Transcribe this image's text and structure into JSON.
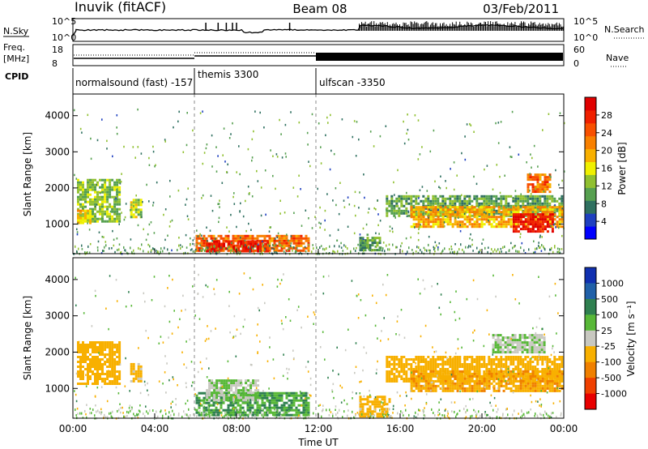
{
  "header": {
    "station": "Inuvik (fitACF)",
    "beam": "Beam 08",
    "date": "03/Feb/2011"
  },
  "top_panels": {
    "nsky_label": "N.Sky",
    "nsky_ticks": [
      "10^5",
      "10^0"
    ],
    "nsearch_label": "N.Search",
    "nsearch_ticks": [
      "10^5",
      "10^0"
    ],
    "freq_label_line1": "Freq.",
    "freq_label_line2": "[MHz]",
    "freq_ticks": [
      "18",
      "8"
    ],
    "nave_label": "Nave",
    "nave_ticks": [
      "60",
      "0"
    ],
    "cpid_label": "CPID",
    "programs": [
      {
        "name": "normalsound (fast) -157",
        "start_hour": 0
      },
      {
        "name": "themis 3300",
        "start_hour": 6
      },
      {
        "name": "ulfscan -3350",
        "start_hour": 12
      }
    ]
  },
  "power_scale": {
    "title": "Power [dB]",
    "ticks": [
      "28",
      "24",
      "20",
      "16",
      "12",
      "8",
      "4"
    ],
    "colors": [
      "#0000ff",
      "#1f40c0",
      "#2f7060",
      "#56a050",
      "#90c030",
      "#f0f000",
      "#f8b000",
      "#f88000",
      "#f85000",
      "#f02000",
      "#e00000"
    ]
  },
  "velocity_scale": {
    "title": "Velocity  [m s⁻¹]",
    "ticks": [
      "1000",
      "500",
      "100",
      "25",
      "-25",
      "-100",
      "-500",
      "-1000"
    ],
    "colors": [
      "#1030b0",
      "#2060a8",
      "#2f8050",
      "#58b838",
      "#c8c8c0",
      "#f8b000",
      "#f08000",
      "#f04000",
      "#e80000"
    ]
  },
  "axes": {
    "ylabel": "Slant Range [km]",
    "xlabel": "Time UT",
    "y_ticks": [
      "1000",
      "2000",
      "3000",
      "4000"
    ],
    "x_ticks": [
      "00:00",
      "04:00",
      "08:00",
      "12:00",
      "16:00",
      "20:00",
      "00:00"
    ]
  },
  "chart_data": [
    {
      "type": "heatmap",
      "title": "Power [dB]",
      "xlabel": "",
      "ylabel": "Slant Range [km]",
      "xlim": [
        0,
        24
      ],
      "ylim": [
        180,
        4600
      ],
      "y_ticks": [
        1000,
        2000,
        3000,
        4000
      ],
      "x_ticks": [
        0,
        4,
        8,
        12,
        16,
        20,
        24
      ],
      "colorbar_range": [
        0,
        32
      ],
      "program_boundaries_hours": [
        6,
        12
      ],
      "regions": [
        {
          "x": [
            0.2,
            2.3
          ],
          "y": [
            1100,
            2250
          ],
          "value": 12
        },
        {
          "x": [
            0.2,
            0.8
          ],
          "y": [
            1050,
            1400
          ],
          "value": 18
        },
        {
          "x": [
            2.8,
            3.3
          ],
          "y": [
            1200,
            1700
          ],
          "value": 14
        },
        {
          "x": [
            6.0,
            11.5
          ],
          "y": [
            250,
            700
          ],
          "value": 24
        },
        {
          "x": [
            6.5,
            9.5
          ],
          "y": [
            250,
            550
          ],
          "value": 30
        },
        {
          "x": [
            15.3,
            23.9
          ],
          "y": [
            1200,
            1800
          ],
          "value": 10
        },
        {
          "x": [
            16.5,
            23.9
          ],
          "y": [
            900,
            1500
          ],
          "value": 20
        },
        {
          "x": [
            21.5,
            23.5
          ],
          "y": [
            800,
            1300
          ],
          "value": 30
        },
        {
          "x": [
            22.2,
            23.3
          ],
          "y": [
            1900,
            2400
          ],
          "value": 24
        },
        {
          "x": [
            14.0,
            15.0
          ],
          "y": [
            300,
            650
          ],
          "value": 10
        }
      ]
    },
    {
      "type": "heatmap",
      "title": "Velocity [m s⁻¹]",
      "xlabel": "Time UT",
      "ylabel": "Slant Range [km]",
      "xlim": [
        0,
        24
      ],
      "ylim": [
        180,
        4600
      ],
      "y_ticks": [
        1000,
        2000,
        3000,
        4000
      ],
      "x_ticks": [
        "00:00",
        "04:00",
        "08:00",
        "12:00",
        "16:00",
        "20:00",
        "00:00"
      ],
      "colorbar_ticks": [
        1000,
        500,
        100,
        25,
        -25,
        -100,
        -500,
        -1000
      ],
      "regions": [
        {
          "x": [
            0.2,
            2.3
          ],
          "y": [
            1100,
            2300
          ],
          "value": -150
        },
        {
          "x": [
            2.8,
            3.3
          ],
          "y": [
            1200,
            1700
          ],
          "value": -100
        },
        {
          "x": [
            6.0,
            11.5
          ],
          "y": [
            250,
            900
          ],
          "value": 60
        },
        {
          "x": [
            6.5,
            9.0
          ],
          "y": [
            700,
            1250
          ],
          "value": 0
        },
        {
          "x": [
            15.3,
            23.9
          ],
          "y": [
            1200,
            1900
          ],
          "value": -200
        },
        {
          "x": [
            16.5,
            23.9
          ],
          "y": [
            900,
            1500
          ],
          "value": -250
        },
        {
          "x": [
            20.5,
            23.0
          ],
          "y": [
            2000,
            2500
          ],
          "value": 0
        },
        {
          "x": [
            14.0,
            15.5
          ],
          "y": [
            250,
            800
          ],
          "value": -120
        }
      ]
    }
  ]
}
